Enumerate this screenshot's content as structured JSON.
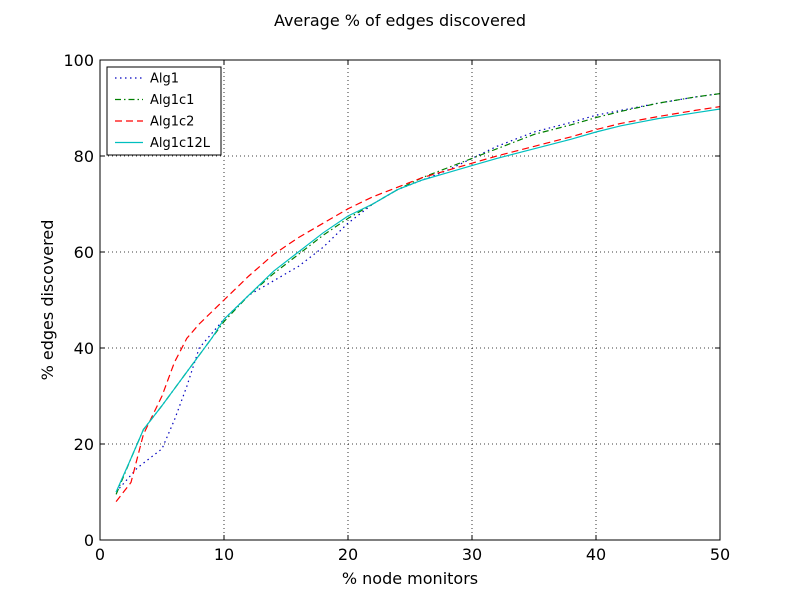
{
  "chart_data": {
    "type": "line",
    "title": "Average % of edges discovered",
    "xlabel": "% node monitors",
    "ylabel": "% edges discovered",
    "xlim": [
      0,
      50
    ],
    "ylim": [
      0,
      100
    ],
    "xticks": [
      0,
      10,
      20,
      30,
      40,
      50
    ],
    "yticks": [
      0,
      20,
      40,
      60,
      80,
      100
    ],
    "grid": true,
    "legend_position": "top-left",
    "series": [
      {
        "name": "Alg1",
        "color": "#0000bf",
        "style": "dotted",
        "x": [
          1.3,
          3,
          5,
          6,
          7,
          8,
          10,
          12,
          14,
          16,
          18,
          20,
          22,
          24,
          26,
          28,
          30,
          32,
          35,
          38,
          40,
          42,
          45,
          48,
          50
        ],
        "y": [
          10,
          15,
          19,
          25,
          32,
          40,
          46,
          51,
          54,
          57,
          61,
          66,
          70,
          73,
          75,
          77,
          79.5,
          82,
          85,
          87,
          88.5,
          89.5,
          91,
          92.3,
          93
        ]
      },
      {
        "name": "Alg1c1",
        "color": "#007f00",
        "style": "dashdot",
        "x": [
          1.3,
          2.5,
          3.5,
          5,
          6,
          7,
          8,
          9,
          10,
          12,
          14,
          16,
          18,
          20,
          22,
          24,
          26,
          28,
          30,
          32,
          35,
          38,
          40,
          42,
          45,
          48,
          50
        ],
        "y": [
          9.5,
          17,
          23,
          28,
          31.5,
          35,
          38.5,
          42,
          45.5,
          51,
          55.5,
          59.5,
          63.5,
          67,
          70,
          73,
          75.5,
          77.5,
          79.5,
          81.5,
          84.5,
          86.5,
          88,
          89.3,
          91,
          92.3,
          93
        ]
      },
      {
        "name": "Alg1c2",
        "color": "#ff0000",
        "style": "dashed",
        "x": [
          1.3,
          2.5,
          3.5,
          5,
          6,
          7,
          8,
          9,
          10,
          12,
          14,
          16,
          18,
          20,
          22,
          24,
          26,
          28,
          30,
          32,
          35,
          38,
          40,
          42,
          45,
          48,
          50
        ],
        "y": [
          8,
          12,
          22,
          30,
          37,
          42,
          45,
          47.5,
          50,
          55,
          59.5,
          63,
          66,
          69,
          71.5,
          73.5,
          75.5,
          77,
          78.5,
          80,
          82,
          84,
          85.5,
          86.8,
          88.2,
          89.5,
          90.3
        ]
      },
      {
        "name": "Alg1c12L",
        "color": "#00bfbf",
        "style": "solid",
        "x": [
          1.3,
          2.5,
          3.5,
          5,
          6,
          7,
          8,
          9,
          10,
          12,
          14,
          16,
          18,
          20,
          22,
          24,
          26,
          28,
          30,
          32,
          35,
          38,
          40,
          42,
          45,
          48,
          50
        ],
        "y": [
          10,
          17,
          23,
          28,
          31.5,
          35,
          38.5,
          42,
          46,
          51,
          56,
          60,
          64,
          67.5,
          70,
          73,
          75,
          76.5,
          78,
          79.5,
          81.5,
          83.5,
          85,
          86.3,
          87.8,
          89,
          89.8
        ]
      }
    ]
  }
}
